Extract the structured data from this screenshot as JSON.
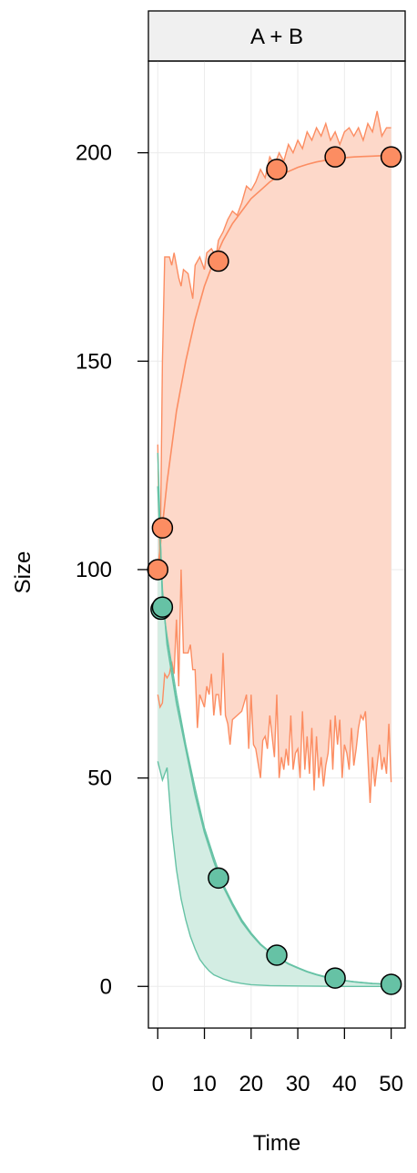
{
  "chart_data": {
    "type": "line",
    "panel_title": "A + B",
    "xlabel": "Time",
    "ylabel": "Size",
    "xlim": [
      -2,
      53
    ],
    "ylim": [
      -10,
      222
    ],
    "x_ticks": [
      0,
      10,
      20,
      30,
      40,
      50
    ],
    "y_ticks": [
      0,
      50,
      100,
      150,
      200
    ],
    "grid": true,
    "series": [
      {
        "color": "#FC8D62",
        "band_fill": "#FDD8C9",
        "points": [
          [
            0,
            100
          ],
          [
            1,
            110
          ],
          [
            13,
            174
          ],
          [
            25.5,
            196
          ],
          [
            38,
            199
          ],
          [
            50,
            199
          ]
        ],
        "curve": [
          [
            0,
            100
          ],
          [
            2,
            121
          ],
          [
            4,
            138
          ],
          [
            6,
            150
          ],
          [
            8,
            160
          ],
          [
            10,
            168
          ],
          [
            12,
            174
          ],
          [
            14,
            179
          ],
          [
            16,
            183
          ],
          [
            18,
            186
          ],
          [
            20,
            189
          ],
          [
            22,
            191
          ],
          [
            24,
            193
          ],
          [
            26,
            194.5
          ],
          [
            28,
            195.5
          ],
          [
            30,
            196.5
          ],
          [
            32,
            197.2
          ],
          [
            34,
            197.8
          ],
          [
            36,
            198.2
          ],
          [
            38,
            198.5
          ],
          [
            40,
            198.8
          ],
          [
            42,
            199
          ],
          [
            44,
            199.1
          ],
          [
            46,
            199.2
          ],
          [
            48,
            199.3
          ],
          [
            50,
            199.4
          ]
        ],
        "upper": [
          [
            0,
            130
          ],
          [
            0.5,
            100
          ],
          [
            1,
            150
          ],
          [
            1.5,
            175
          ],
          [
            2.5,
            175
          ],
          [
            3,
            173
          ],
          [
            3.5,
            176
          ],
          [
            4.5,
            170
          ],
          [
            5,
            168
          ],
          [
            5.5,
            172
          ],
          [
            6.5,
            171
          ],
          [
            7.5,
            165
          ],
          [
            8,
            173
          ],
          [
            9,
            175
          ],
          [
            10,
            172
          ],
          [
            10.5,
            176
          ],
          [
            11.5,
            177
          ],
          [
            12.5,
            175
          ],
          [
            13,
            179
          ],
          [
            14,
            181
          ],
          [
            15,
            184
          ],
          [
            16,
            186
          ],
          [
            17,
            185
          ],
          [
            18,
            188
          ],
          [
            19,
            192
          ],
          [
            20,
            191
          ],
          [
            21,
            193
          ],
          [
            22,
            196
          ],
          [
            23,
            194
          ],
          [
            24,
            199
          ],
          [
            25,
            197
          ],
          [
            26,
            200
          ],
          [
            27,
            198
          ],
          [
            28,
            202
          ],
          [
            29,
            200
          ],
          [
            30,
            203
          ],
          [
            31,
            201
          ],
          [
            32,
            205
          ],
          [
            33,
            203
          ],
          [
            34,
            206
          ],
          [
            35,
            204
          ],
          [
            36,
            207
          ],
          [
            37,
            203
          ],
          [
            38,
            205
          ],
          [
            39,
            202
          ],
          [
            40,
            205
          ],
          [
            41,
            206
          ],
          [
            42,
            204
          ],
          [
            43,
            206
          ],
          [
            44,
            203
          ],
          [
            45,
            207
          ],
          [
            46,
            205
          ],
          [
            47,
            210
          ],
          [
            48,
            204
          ],
          [
            49,
            206
          ],
          [
            50,
            206
          ]
        ],
        "lower": [
          [
            0,
            70
          ],
          [
            0.5,
            67
          ],
          [
            1,
            68
          ],
          [
            1.5,
            75
          ],
          [
            2,
            74
          ],
          [
            2.5,
            75
          ],
          [
            3,
            78
          ],
          [
            3.5,
            75
          ],
          [
            4,
            88
          ],
          [
            4.5,
            72
          ],
          [
            5,
            100
          ],
          [
            5.5,
            80
          ],
          [
            6.5,
            80
          ],
          [
            7,
            82
          ],
          [
            7.5,
            76
          ],
          [
            8,
            76
          ],
          [
            8.5,
            62
          ],
          [
            9,
            70
          ],
          [
            10,
            67
          ],
          [
            10.5,
            72
          ],
          [
            11,
            70
          ],
          [
            11.5,
            75
          ],
          [
            12,
            65
          ],
          [
            12.5,
            70
          ],
          [
            13,
            70
          ],
          [
            13.5,
            65
          ],
          [
            14,
            80
          ],
          [
            14.5,
            65
          ],
          [
            15,
            63
          ],
          [
            15.5,
            58
          ],
          [
            16,
            64
          ],
          [
            17,
            65
          ],
          [
            18,
            66
          ],
          [
            19,
            70
          ],
          [
            19.5,
            57
          ],
          [
            20,
            70
          ],
          [
            20.5,
            58
          ],
          [
            21,
            57
          ],
          [
            22,
            50
          ],
          [
            22.5,
            59
          ],
          [
            23,
            60
          ],
          [
            23.5,
            57
          ],
          [
            24,
            65
          ],
          [
            24.5,
            60
          ],
          [
            25,
            55
          ],
          [
            25.5,
            70
          ],
          [
            26,
            50
          ],
          [
            26.5,
            55
          ],
          [
            27,
            52
          ],
          [
            27.5,
            57
          ],
          [
            28,
            53
          ],
          [
            28.5,
            65
          ],
          [
            29,
            52
          ],
          [
            29.5,
            56
          ],
          [
            30,
            57
          ],
          [
            30.5,
            50
          ],
          [
            31,
            66
          ],
          [
            31.5,
            52
          ],
          [
            32,
            60
          ],
          [
            32.5,
            51
          ],
          [
            33,
            62
          ],
          [
            33.5,
            47
          ],
          [
            34,
            60
          ],
          [
            34.5,
            50
          ],
          [
            35,
            55
          ],
          [
            35.5,
            48
          ],
          [
            36,
            53
          ],
          [
            36.5,
            56
          ],
          [
            37,
            64
          ],
          [
            37.5,
            52
          ],
          [
            38,
            65
          ],
          [
            38.5,
            58
          ],
          [
            39,
            64
          ],
          [
            39.5,
            50
          ],
          [
            40,
            58
          ],
          [
            40.5,
            56
          ],
          [
            41,
            52
          ],
          [
            41.5,
            62
          ],
          [
            42,
            53
          ],
          [
            42.5,
            57
          ],
          [
            43,
            62
          ],
          [
            43.5,
            65
          ],
          [
            44,
            64
          ],
          [
            44.5,
            66
          ],
          [
            45,
            55
          ],
          [
            45.5,
            44
          ],
          [
            46,
            55
          ],
          [
            46.5,
            48
          ],
          [
            47,
            53
          ],
          [
            47.5,
            58
          ],
          [
            48,
            52
          ],
          [
            48.5,
            55
          ],
          [
            49,
            51
          ],
          [
            49.5,
            63
          ],
          [
            50,
            49
          ]
        ]
      },
      {
        "color": "#66C2A5",
        "band_fill": "#D3EDE3",
        "points": [
          [
            0.7,
            90.5
          ],
          [
            1,
            91
          ],
          [
            13,
            26
          ],
          [
            25.5,
            7.5
          ],
          [
            38,
            2
          ],
          [
            50,
            0.5
          ]
        ],
        "curve": [
          [
            0,
            120
          ],
          [
            1,
            95
          ],
          [
            2,
            82
          ],
          [
            4,
            68
          ],
          [
            6,
            57
          ],
          [
            8,
            46
          ],
          [
            10,
            37
          ],
          [
            12,
            30
          ],
          [
            14,
            24
          ],
          [
            16,
            19.5
          ],
          [
            18,
            15.5
          ],
          [
            20,
            12.5
          ],
          [
            22,
            10
          ],
          [
            24,
            8.2
          ],
          [
            26,
            6.7
          ],
          [
            28,
            5.4
          ],
          [
            30,
            4.4
          ],
          [
            32,
            3.5
          ],
          [
            34,
            2.8
          ],
          [
            36,
            2.2
          ],
          [
            38,
            1.8
          ],
          [
            40,
            1.4
          ],
          [
            42,
            1.1
          ],
          [
            44,
            0.9
          ],
          [
            46,
            0.7
          ],
          [
            48,
            0.6
          ],
          [
            50,
            0.5
          ]
        ],
        "upper": [
          [
            0,
            128
          ],
          [
            1,
            92
          ],
          [
            2,
            84
          ],
          [
            4,
            70
          ],
          [
            6,
            58
          ],
          [
            8,
            47.5
          ],
          [
            10,
            38
          ],
          [
            12,
            31
          ],
          [
            14,
            24.5
          ],
          [
            16,
            20
          ],
          [
            18,
            16
          ],
          [
            20,
            12.8
          ],
          [
            22,
            10.2
          ],
          [
            24,
            8.3
          ],
          [
            26,
            6.8
          ],
          [
            28,
            5.5
          ],
          [
            30,
            4.5
          ],
          [
            32,
            3.6
          ],
          [
            34,
            2.9
          ],
          [
            36,
            2.3
          ],
          [
            38,
            1.8
          ],
          [
            40,
            1.4
          ],
          [
            42,
            1.1
          ],
          [
            44,
            0.9
          ],
          [
            46,
            0.7
          ],
          [
            48,
            0.6
          ],
          [
            50,
            0.5
          ]
        ],
        "lower": [
          [
            0,
            54
          ],
          [
            1,
            49.5
          ],
          [
            2,
            52.5
          ],
          [
            3,
            38
          ],
          [
            4,
            28
          ],
          [
            5,
            21
          ],
          [
            6,
            16
          ],
          [
            7,
            12
          ],
          [
            8,
            9
          ],
          [
            9,
            6.5
          ],
          [
            10,
            5
          ],
          [
            11,
            3.7
          ],
          [
            12,
            2.8
          ],
          [
            14,
            1.8
          ],
          [
            16,
            1.1
          ],
          [
            18,
            0.7
          ],
          [
            20,
            0.4
          ],
          [
            24,
            0.2
          ],
          [
            30,
            0.1
          ],
          [
            40,
            0
          ],
          [
            50,
            0
          ]
        ]
      }
    ]
  }
}
